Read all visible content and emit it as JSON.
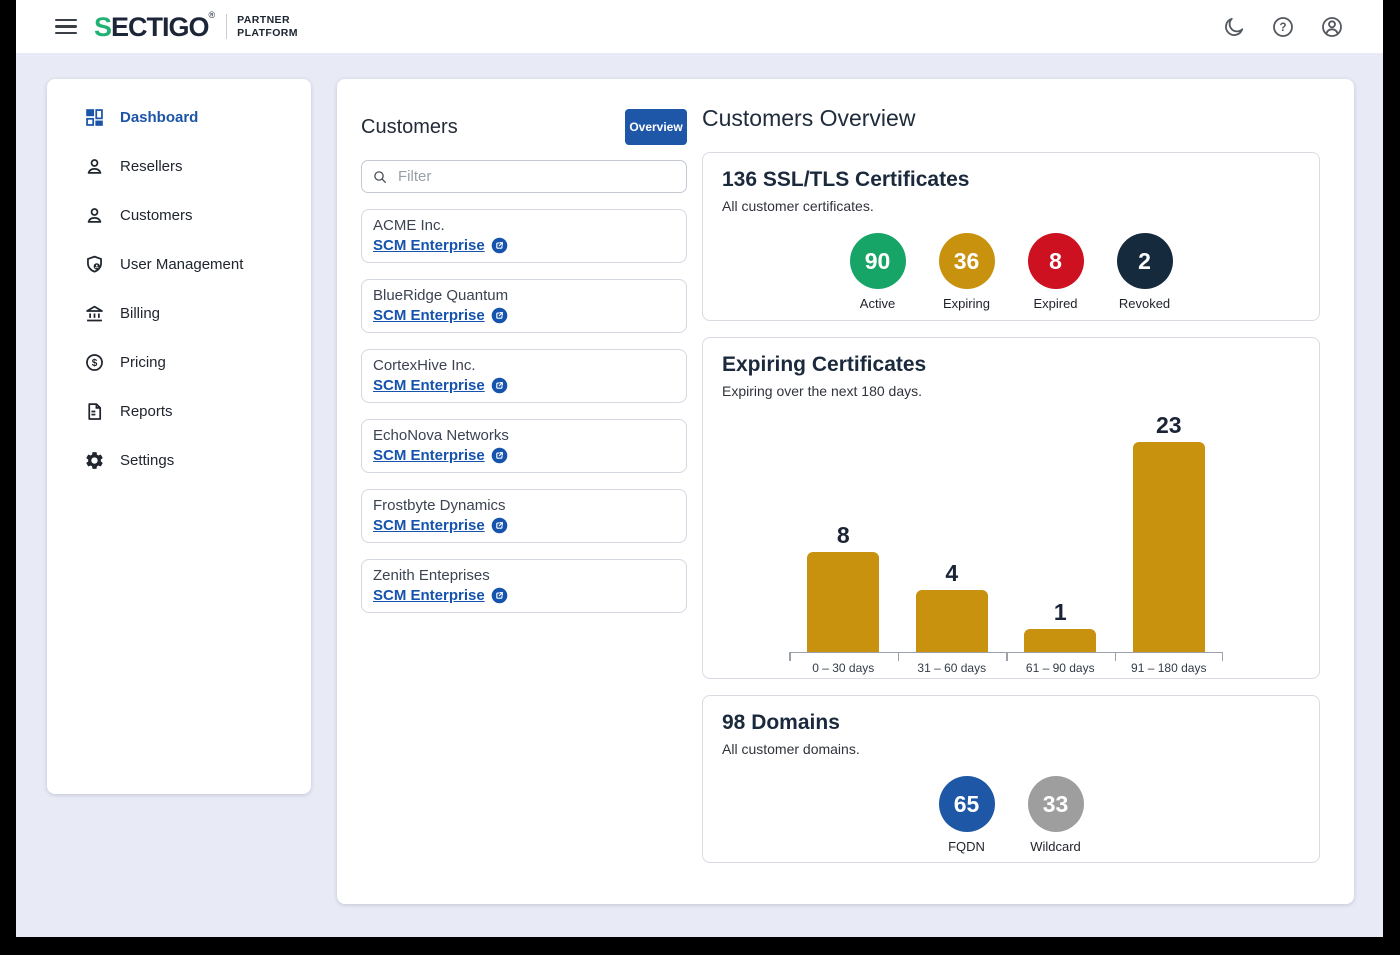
{
  "topbar": {
    "logo_s": "S",
    "logo_rest": "ECTIGO",
    "logo_reg": "®",
    "tagline_line1": "PARTNER",
    "tagline_line2": "PLATFORM",
    "accent_green": "#21b273"
  },
  "sidebar": {
    "items": [
      {
        "label": "Dashboard",
        "icon": "dashboard-icon",
        "active": true
      },
      {
        "label": "Resellers",
        "icon": "person-icon",
        "active": false
      },
      {
        "label": "Customers",
        "icon": "person-icon",
        "active": false
      },
      {
        "label": "User Management",
        "icon": "shield-user-icon",
        "active": false
      },
      {
        "label": "Billing",
        "icon": "bank-icon",
        "active": false
      },
      {
        "label": "Pricing",
        "icon": "dollar-circle-icon",
        "active": false
      },
      {
        "label": "Reports",
        "icon": "document-icon",
        "active": false
      },
      {
        "label": "Settings",
        "icon": "gear-icon",
        "active": false
      }
    ]
  },
  "customers_panel": {
    "title": "Customers",
    "overview_button": "Overview",
    "overview_button_color": "#1e56a8",
    "filter_placeholder": "Filter",
    "link_label": "SCM Enterprise",
    "link_color": "#1553ad",
    "customers": [
      {
        "name": "ACME Inc."
      },
      {
        "name": "BlueRidge Quantum"
      },
      {
        "name": "CortexHive Inc."
      },
      {
        "name": "EchoNova Networks"
      },
      {
        "name": "Frostbyte Dynamics"
      },
      {
        "name": "Zenith Enteprises"
      }
    ]
  },
  "overview_panel": {
    "title": "Customers Overview",
    "certificates_card": {
      "title": "136 SSL/TLS Certificates",
      "subtitle": "All customer certificates.",
      "stats": [
        {
          "value": 90,
          "label": "Active",
          "color": "#16a566"
        },
        {
          "value": 36,
          "label": "Expiring",
          "color": "#c8920f"
        },
        {
          "value": 8,
          "label": "Expired",
          "color": "#ce1120"
        },
        {
          "value": 2,
          "label": "Revoked",
          "color": "#152a3d"
        }
      ]
    },
    "expiring_card": {
      "title": "Expiring Certificates",
      "subtitle": "Expiring over the next 180 days.",
      "chart_data": {
        "type": "bar",
        "categories": [
          "0 – 30 days",
          "31 – 60 days",
          "61 – 90 days",
          "91 – 180 days"
        ],
        "values": [
          8,
          4,
          1,
          23
        ],
        "bar_color": "#c8920f",
        "ylim": [
          0,
          23
        ],
        "grid": false,
        "legend": "none"
      }
    },
    "domains_card": {
      "title": "98 Domains",
      "subtitle": "All customer domains.",
      "stats": [
        {
          "value": 65,
          "label": "FQDN",
          "color": "#1d57a5"
        },
        {
          "value": 33,
          "label": "Wildcard",
          "color": "#9e9e9e"
        }
      ]
    }
  }
}
